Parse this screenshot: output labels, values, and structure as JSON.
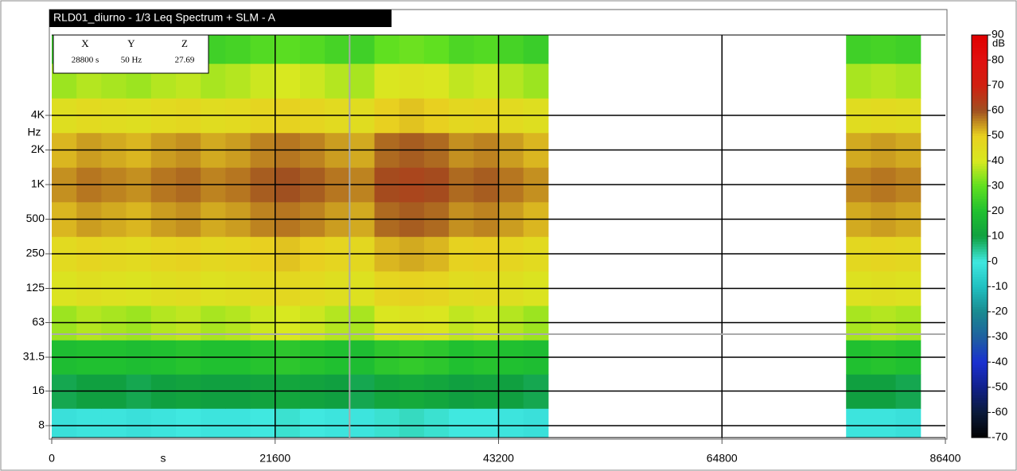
{
  "chart_data": {
    "type": "heatmap",
    "title": "RLD01_diurno - 1/3 Leq Spectrum + SLM - A",
    "x": [
      0,
      2400,
      4800,
      7200,
      9600,
      12000,
      14400,
      16800,
      19200,
      21600,
      24000,
      26400,
      28800,
      31200,
      33600,
      36000,
      38400,
      40800,
      43200,
      45600,
      48000,
      50400,
      52800,
      55200,
      57600,
      60000,
      62400,
      64800,
      67200,
      69600,
      72000,
      74400,
      76800,
      79200,
      81600,
      84000
    ],
    "y": [
      8,
      16,
      31.5,
      63,
      125,
      250,
      500,
      1000,
      2000,
      4000,
      8000,
      16000
    ],
    "z": [
      [
        -2,
        -1,
        -1,
        -2,
        -1,
        0,
        -1,
        -1,
        0,
        1,
        0,
        -1,
        -1,
        1,
        2,
        1,
        0,
        0,
        -1,
        -2,
        null,
        null,
        null,
        null,
        null,
        null,
        null,
        null,
        null,
        null,
        null,
        null,
        -1,
        -1,
        -2,
        null
      ],
      [
        9,
        10,
        10,
        9,
        10,
        11,
        10,
        10,
        11,
        12,
        11,
        10,
        9,
        12,
        13,
        12,
        10,
        11,
        10,
        9,
        null,
        null,
        null,
        null,
        null,
        null,
        null,
        null,
        null,
        null,
        null,
        null,
        10,
        10,
        9,
        null
      ],
      [
        19,
        20,
        20,
        19,
        20,
        21,
        20,
        20,
        21,
        22,
        21,
        20,
        19,
        22,
        23,
        22,
        20,
        21,
        20,
        19,
        null,
        null,
        null,
        null,
        null,
        null,
        null,
        null,
        null,
        null,
        null,
        null,
        20,
        21,
        20,
        null
      ],
      [
        35,
        37,
        36,
        35,
        37,
        38,
        36,
        37,
        39,
        40,
        39,
        37,
        36,
        41,
        42,
        41,
        38,
        39,
        37,
        35,
        null,
        null,
        null,
        null,
        null,
        null,
        null,
        null,
        null,
        null,
        null,
        null,
        36,
        37,
        36,
        null
      ],
      [
        42,
        44,
        43,
        42,
        44,
        45,
        43,
        44,
        46,
        47,
        46,
        44,
        43,
        48,
        49,
        48,
        45,
        46,
        44,
        42,
        null,
        null,
        null,
        null,
        null,
        null,
        null,
        null,
        null,
        null,
        null,
        null,
        43,
        44,
        43,
        null
      ],
      [
        46,
        48,
        47,
        46,
        48,
        49,
        47,
        48,
        50,
        51,
        50,
        48,
        47,
        52,
        53,
        52,
        49,
        50,
        48,
        46,
        null,
        null,
        null,
        null,
        null,
        null,
        null,
        null,
        null,
        null,
        null,
        null,
        47,
        48,
        47,
        null
      ],
      [
        52,
        54,
        53,
        52,
        54,
        55,
        53,
        54,
        56,
        57,
        56,
        54,
        53,
        58,
        59,
        58,
        55,
        56,
        54,
        52,
        null,
        null,
        null,
        null,
        null,
        null,
        null,
        null,
        null,
        null,
        null,
        null,
        53,
        54,
        53,
        null
      ],
      [
        55,
        57,
        56,
        55,
        57,
        58,
        56,
        57,
        59,
        60,
        59,
        57,
        56,
        61,
        62,
        61,
        58,
        59,
        57,
        55,
        null,
        null,
        null,
        null,
        null,
        null,
        null,
        null,
        null,
        null,
        null,
        null,
        56,
        57,
        56,
        null
      ],
      [
        52,
        54,
        53,
        52,
        54,
        55,
        53,
        54,
        56,
        57,
        56,
        54,
        53,
        58,
        59,
        58,
        55,
        56,
        54,
        52,
        null,
        null,
        null,
        null,
        null,
        null,
        null,
        null,
        null,
        null,
        null,
        null,
        53,
        54,
        53,
        null
      ],
      [
        44,
        46,
        45,
        44,
        46,
        47,
        45,
        46,
        48,
        49,
        48,
        46,
        45,
        50,
        51,
        50,
        47,
        48,
        46,
        44,
        null,
        null,
        null,
        null,
        null,
        null,
        null,
        null,
        null,
        null,
        null,
        null,
        45,
        46,
        45,
        null
      ],
      [
        35,
        37,
        36,
        35,
        37,
        38,
        36,
        37,
        39,
        40,
        39,
        37,
        36,
        41,
        42,
        41,
        38,
        39,
        37,
        35,
        null,
        null,
        null,
        null,
        null,
        null,
        null,
        null,
        null,
        null,
        null,
        null,
        36,
        37,
        36,
        null
      ],
      [
        24,
        26,
        25,
        24,
        26,
        27,
        25,
        26,
        28,
        29,
        28,
        26,
        25,
        30,
        31,
        30,
        27,
        28,
        26,
        24,
        null,
        null,
        null,
        null,
        null,
        null,
        null,
        null,
        null,
        null,
        null,
        null,
        25,
        26,
        25,
        null
      ]
    ],
    "xlim": [
      0,
      86400
    ],
    "xticks": [
      0,
      21600,
      43200,
      64800,
      86400
    ],
    "xlabel": "s",
    "ylim": [
      6.3,
      20000
    ],
    "log_y": true,
    "yticks": [
      8,
      16,
      31.5,
      63,
      125,
      250,
      500,
      {
        "value": 1000,
        "label": "1K"
      },
      {
        "value": 2000,
        "label": "2K"
      },
      {
        "value": 4000,
        "label": "4K"
      }
    ],
    "ylabel": "Hz",
    "grid": true,
    "zlim": [
      -70,
      90
    ],
    "zticks": [
      -70,
      -60,
      -50,
      -40,
      -30,
      -20,
      -10,
      0,
      10,
      20,
      30,
      40,
      50,
      60,
      70,
      80,
      90
    ],
    "zlabel": "dB",
    "colorscale": [
      {
        "value": -70,
        "color": "#000000"
      },
      {
        "value": -60,
        "color": "#0a1a3a"
      },
      {
        "value": -50,
        "color": "#10208a"
      },
      {
        "value": -40,
        "color": "#1a30d0"
      },
      {
        "value": -30,
        "color": "#1f60a0"
      },
      {
        "value": -20,
        "color": "#1a8a90"
      },
      {
        "value": -10,
        "color": "#20c0c0"
      },
      {
        "value": 0,
        "color": "#40e8e0"
      },
      {
        "value": 10,
        "color": "#10a040"
      },
      {
        "value": 20,
        "color": "#20c030"
      },
      {
        "value": 30,
        "color": "#60e020"
      },
      {
        "value": 40,
        "color": "#d8e820"
      },
      {
        "value": 50,
        "color": "#e8d020"
      },
      {
        "value": 60,
        "color": "#a05020"
      },
      {
        "value": 70,
        "color": "#d02010"
      },
      {
        "value": 80,
        "color": "#e01010"
      },
      {
        "value": 90,
        "color": "#e00000"
      }
    ],
    "cursor": {
      "headers": [
        "X",
        "Y",
        "Z"
      ],
      "x": {
        "value": 28800,
        "label": "28800 s"
      },
      "y": {
        "value": 50,
        "label": "50 Hz"
      },
      "z": {
        "value": 27.69,
        "label": "27.69"
      }
    }
  }
}
